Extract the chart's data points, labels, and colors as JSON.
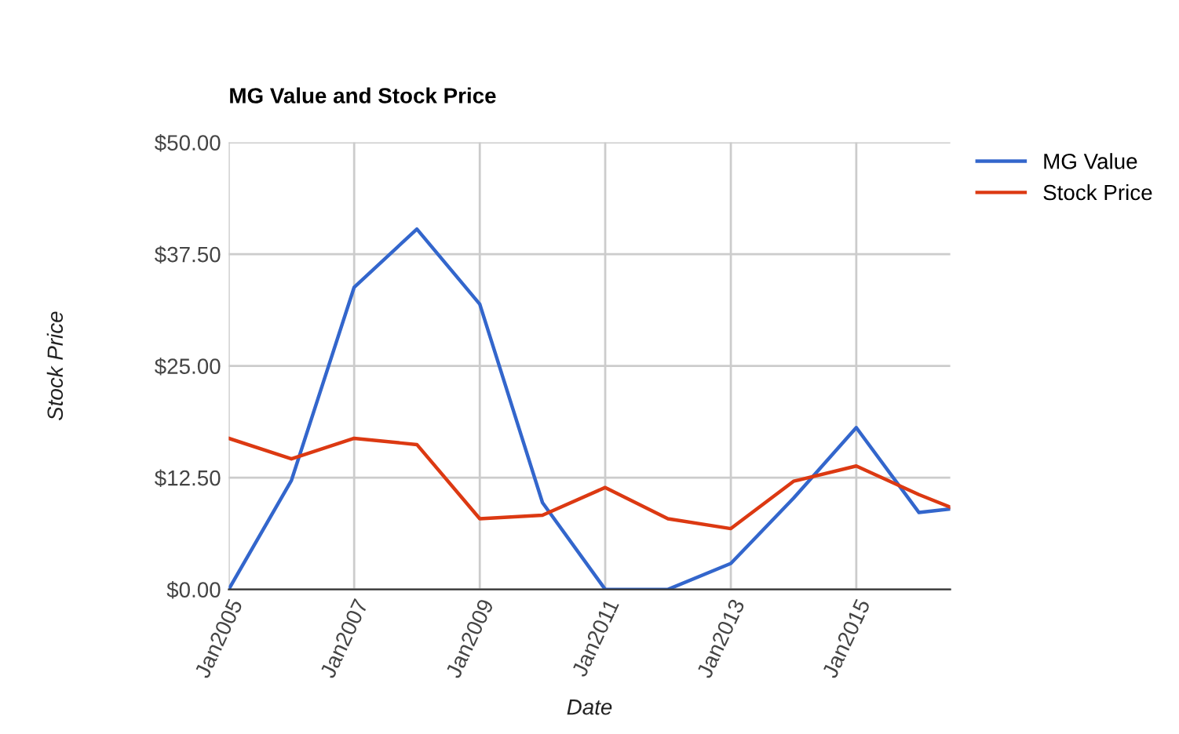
{
  "chart_data": {
    "type": "line",
    "title": "MG Value and Stock Price",
    "xlabel": "Date",
    "ylabel": "Stock Price",
    "x": [
      "2005-01",
      "2006-01",
      "2007-01",
      "2008-01",
      "2009-01",
      "2010-01",
      "2011-01",
      "2012-01",
      "2013-01",
      "2014-01",
      "2015-01",
      "2016-01",
      "2016-07"
    ],
    "series": [
      {
        "name": "MG Value",
        "color": "#3366cc",
        "values": [
          0,
          12.2,
          33.8,
          40.3,
          31.9,
          9.7,
          0,
          0,
          2.9,
          10.2,
          18.1,
          8.6,
          9.0
        ]
      },
      {
        "name": "Stock Price",
        "color": "#dc3912",
        "values": [
          16.9,
          14.6,
          16.9,
          16.2,
          7.9,
          8.3,
          11.4,
          7.9,
          6.8,
          12.1,
          13.8,
          10.6,
          9.2
        ]
      }
    ],
    "xlim": [
      "2005-01",
      "2016-07"
    ],
    "xticks": [
      {
        "value": "2005-01",
        "label": "Jan2005"
      },
      {
        "value": "2007-01",
        "label": "Jan2007"
      },
      {
        "value": "2009-01",
        "label": "Jan2009"
      },
      {
        "value": "2011-01",
        "label": "Jan2011"
      },
      {
        "value": "2013-01",
        "label": "Jan2013"
      },
      {
        "value": "2015-01",
        "label": "Jan2015"
      }
    ],
    "ylim": [
      0,
      50
    ],
    "yticks": [
      {
        "value": 0,
        "label": "$0.00"
      },
      {
        "value": 12.5,
        "label": "$12.50"
      },
      {
        "value": 25,
        "label": "$25.00"
      },
      {
        "value": 37.5,
        "label": "$37.50"
      },
      {
        "value": 50,
        "label": "$50.00"
      }
    ],
    "grid": true,
    "legend": "top right",
    "marker": "none",
    "line_style": "solid"
  }
}
